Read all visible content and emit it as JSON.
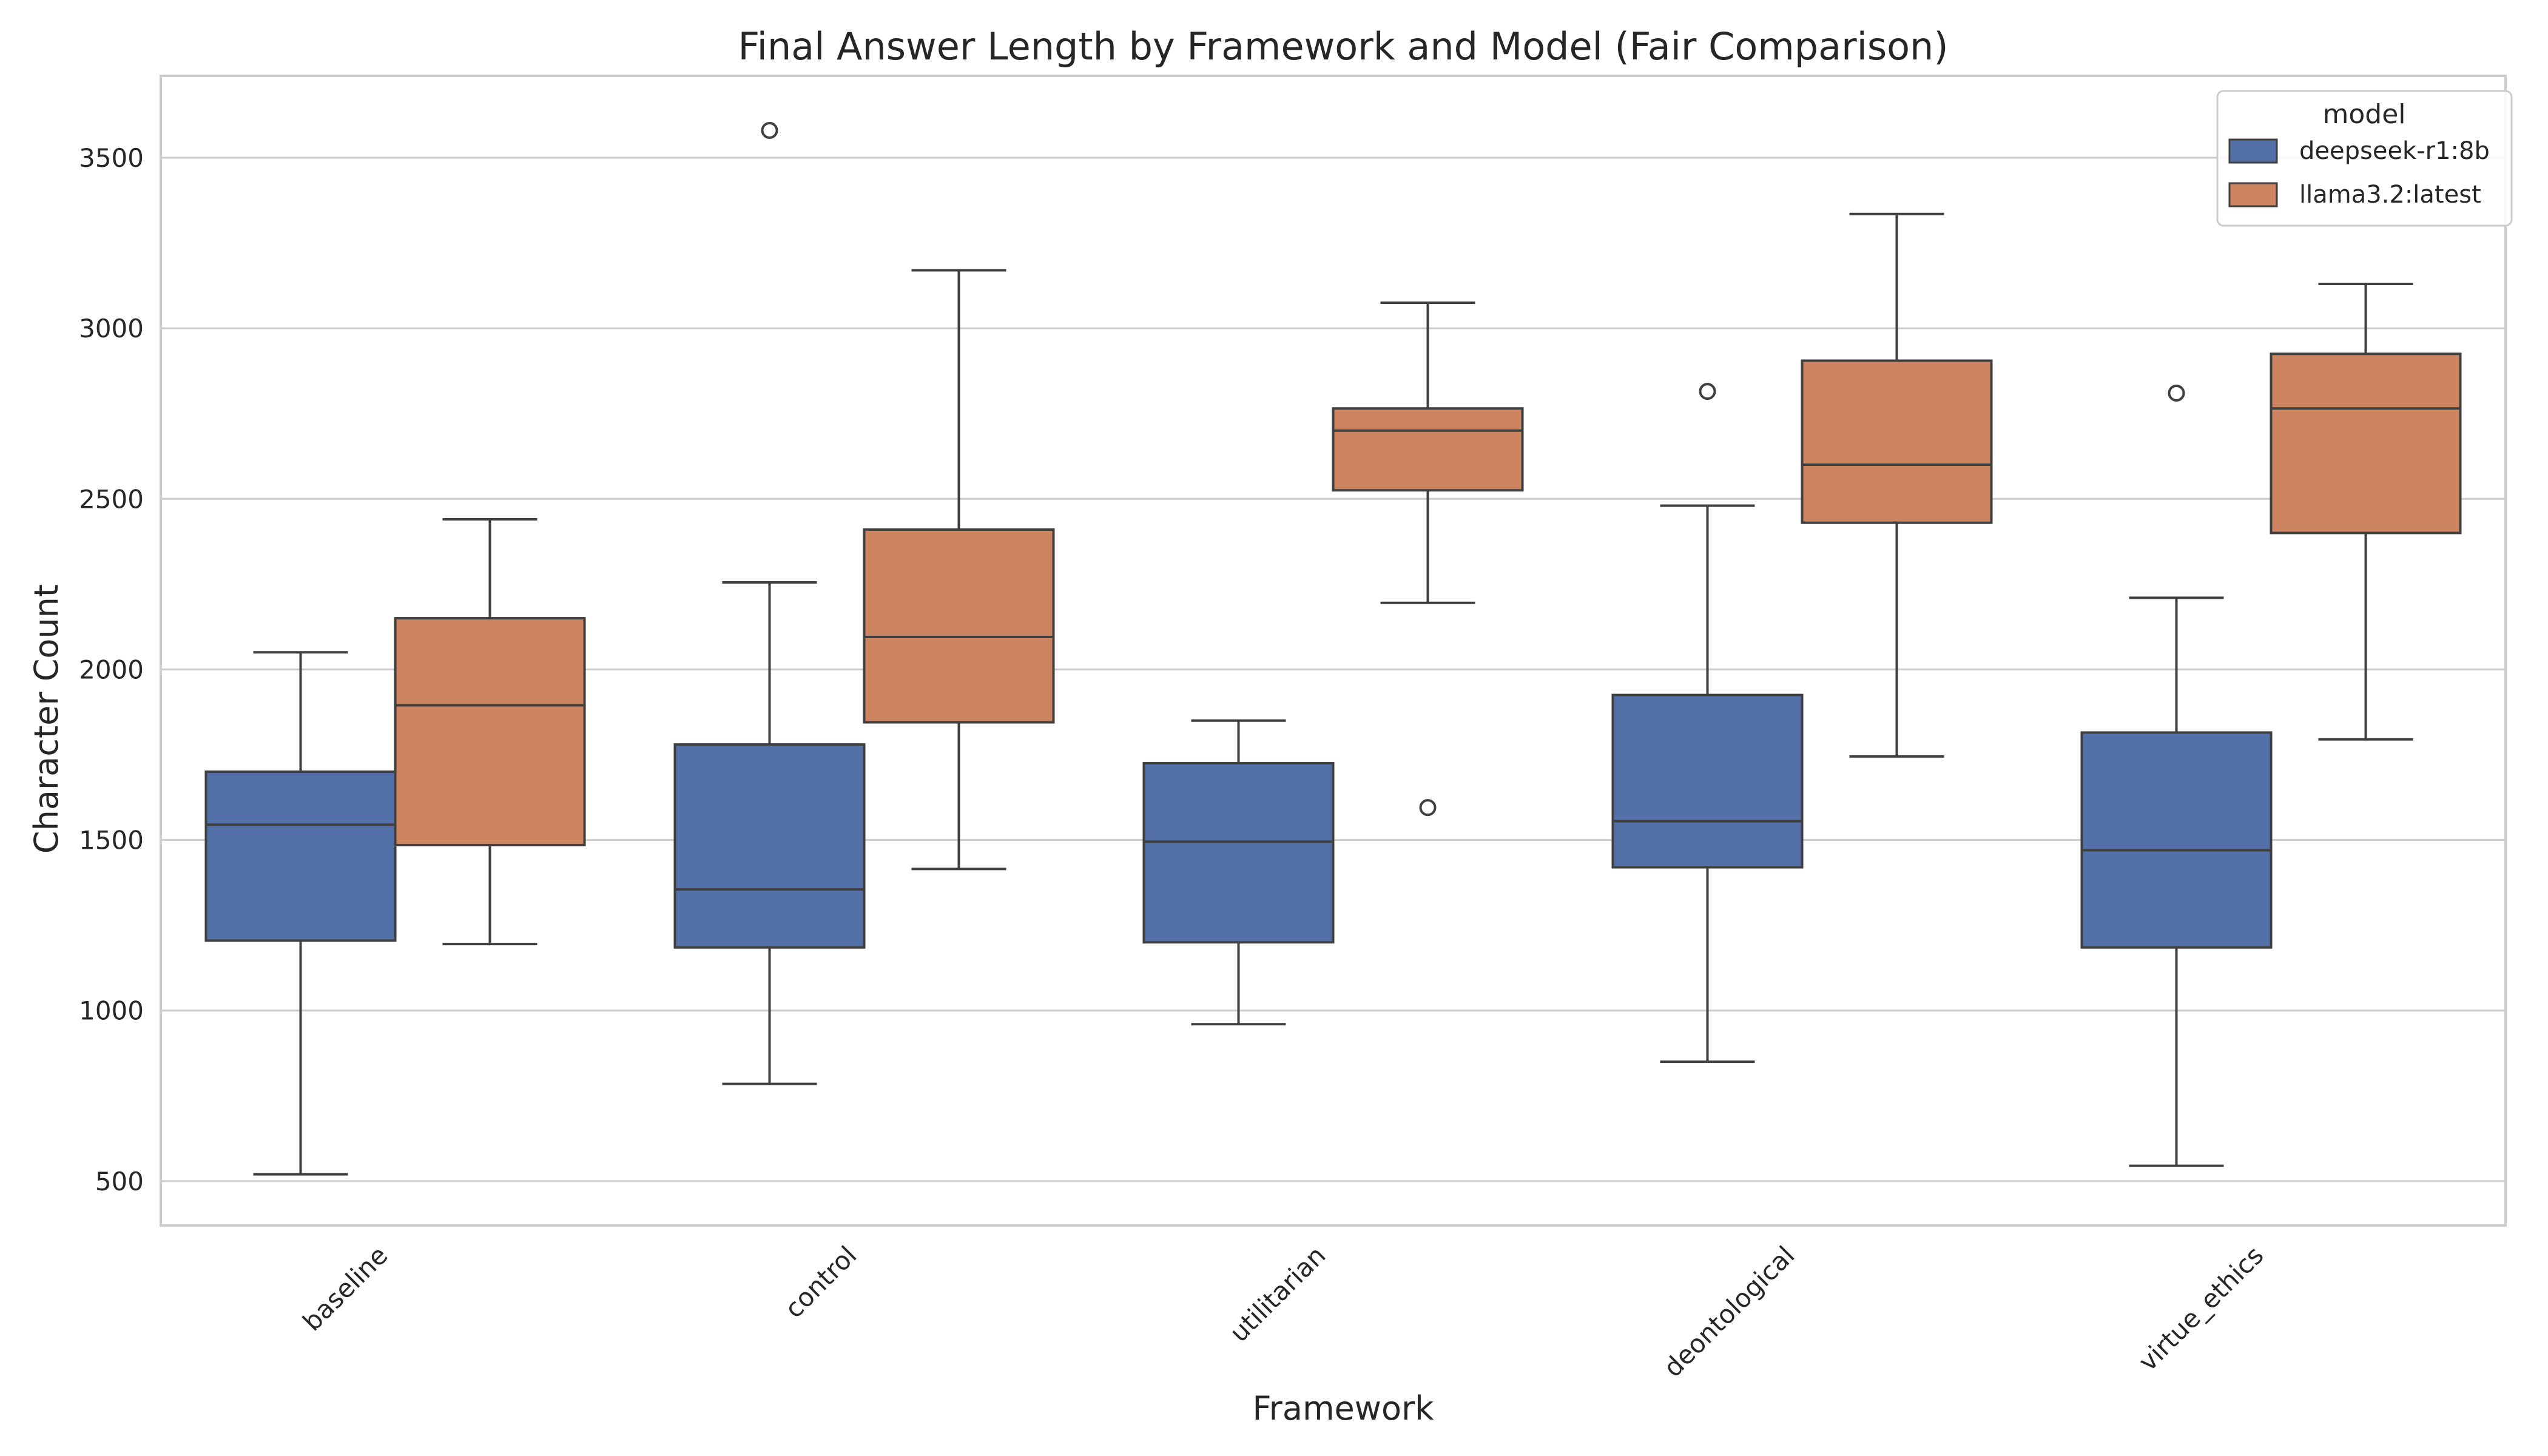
{
  "chart_data": {
    "type": "box",
    "title": "Final Answer Length by Framework and Model (Fair Comparison)",
    "xlabel": "Framework",
    "ylabel": "Character Count",
    "ylim": [
      370,
      3740
    ],
    "yticks": [
      500,
      1000,
      1500,
      2000,
      2500,
      3000,
      3500
    ],
    "grid": true,
    "legend": {
      "title": "model",
      "placement": "top-right"
    },
    "categories": [
      "baseline",
      "control",
      "utilitarian",
      "deontological",
      "virtue_ethics"
    ],
    "series": [
      {
        "name": "deepseek-r1:8b",
        "color": "#5470a8",
        "boxes": [
          {
            "whisker_low": 520,
            "q1": 1205,
            "median": 1545,
            "q3": 1700,
            "whisker_high": 2050,
            "outliers": []
          },
          {
            "whisker_low": 785,
            "q1": 1185,
            "median": 1355,
            "q3": 1780,
            "whisker_high": 2255,
            "outliers": [
              3580
            ]
          },
          {
            "whisker_low": 960,
            "q1": 1200,
            "median": 1495,
            "q3": 1725,
            "whisker_high": 1850,
            "outliers": []
          },
          {
            "whisker_low": 850,
            "q1": 1420,
            "median": 1555,
            "q3": 1925,
            "whisker_high": 2480,
            "outliers": [
              2815
            ]
          },
          {
            "whisker_low": 545,
            "q1": 1185,
            "median": 1470,
            "q3": 1815,
            "whisker_high": 2210,
            "outliers": [
              2810
            ]
          }
        ]
      },
      {
        "name": "llama3.2:latest",
        "color": "#cc8560",
        "boxes": [
          {
            "whisker_low": 1195,
            "q1": 1485,
            "median": 1895,
            "q3": 2150,
            "whisker_high": 2440,
            "outliers": []
          },
          {
            "whisker_low": 1415,
            "q1": 1845,
            "median": 2095,
            "q3": 2410,
            "whisker_high": 3170,
            "outliers": []
          },
          {
            "whisker_low": 2195,
            "q1": 2525,
            "median": 2700,
            "q3": 2765,
            "whisker_high": 3075,
            "outliers": [
              1595
            ]
          },
          {
            "whisker_low": 1745,
            "q1": 2430,
            "median": 2600,
            "q3": 2905,
            "whisker_high": 3335,
            "outliers": []
          },
          {
            "whisker_low": 1795,
            "q1": 2400,
            "median": 2765,
            "q3": 2925,
            "whisker_high": 3130,
            "outliers": []
          }
        ]
      }
    ]
  }
}
